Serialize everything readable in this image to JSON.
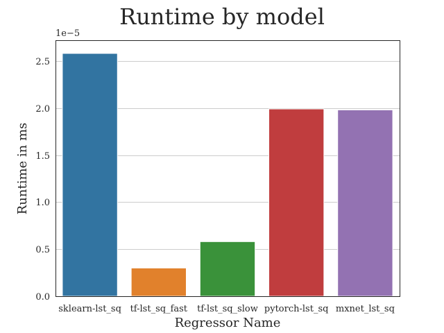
{
  "chart_data": {
    "type": "bar",
    "title": "Runtime by model",
    "xlabel": "Regressor Name",
    "ylabel": "Runtime in ms",
    "y_scale_label": "1e−5",
    "categories": [
      "sklearn-lst_sq",
      "tf-lst_sq_fast",
      "tf-lst_sq_slow",
      "pytorch-lst_sq",
      "mxnet_lst_sq"
    ],
    "values": [
      2.58,
      0.3,
      0.58,
      1.99,
      1.98
    ],
    "value_multiplier": 1e-05,
    "colors": [
      "#3274a1",
      "#e1812c",
      "#3a923a",
      "#c03d3e",
      "#9372b2"
    ],
    "ylim": [
      0,
      2.72
    ],
    "yticks": [
      0.0,
      0.5,
      1.0,
      1.5,
      2.0,
      2.5
    ],
    "ytick_labels": [
      "0.0",
      "0.5",
      "1.0",
      "1.5",
      "2.0",
      "2.5"
    ],
    "grid": true
  }
}
